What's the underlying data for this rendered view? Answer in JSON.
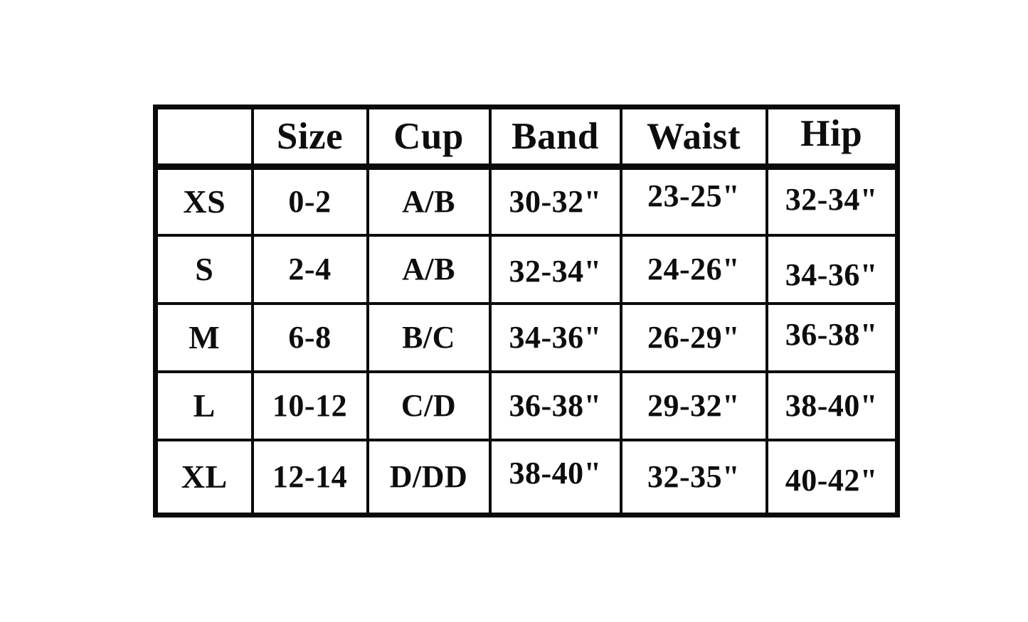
{
  "table": {
    "title": "size-chart",
    "headers": [
      "",
      "Size",
      "Cup",
      "Band",
      "Waist",
      "Hip"
    ],
    "rows": [
      {
        "label": "XS",
        "cells": [
          "0-2",
          "A/B",
          "30-32\"",
          "23-25\"",
          "32-34\""
        ]
      },
      {
        "label": "S",
        "cells": [
          "2-4",
          "A/B",
          "32-34\"",
          "24-26\"",
          "34-36\""
        ]
      },
      {
        "label": "M",
        "cells": [
          "6-8",
          "B/C",
          "34-36\"",
          "26-29\"",
          "36-38\""
        ]
      },
      {
        "label": "L",
        "cells": [
          "10-12",
          "C/D",
          "36-38\"",
          "29-32\"",
          "38-40\""
        ]
      },
      {
        "label": "XL",
        "cells": [
          "12-14",
          "D/DD",
          "38-40\"",
          "32-35\"",
          "40-42\""
        ]
      }
    ],
    "colors": {
      "text": "#0d0d0d",
      "border": "#0b0b0b",
      "background": "#ffffff"
    }
  }
}
